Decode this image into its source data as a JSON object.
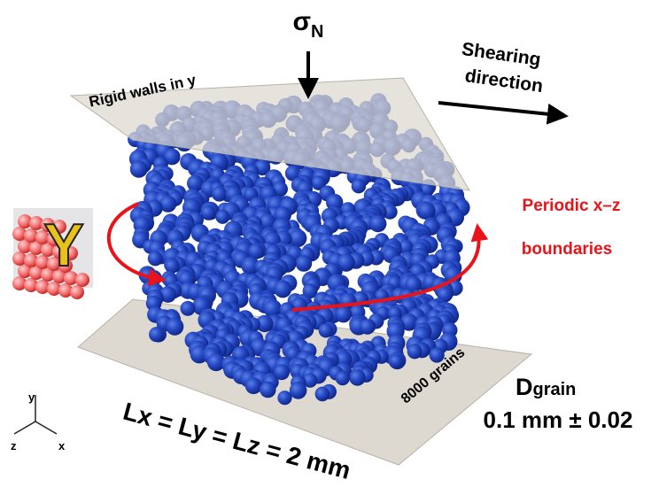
{
  "normal_stress": {
    "symbol": "σ",
    "subscript": "N"
  },
  "shear": {
    "line1": "Shearing",
    "line2": "direction"
  },
  "walls": "Rigid walls in y",
  "periodic": {
    "line1": "Periodic x–z",
    "line2": "boundaries"
  },
  "grain_count": "8000 grains",
  "diameter": {
    "symbol": "D",
    "subscript": "grain",
    "value": "0.1 mm ± 0.02"
  },
  "box_size": "Lx = Ly = Lz = 2 mm",
  "axes": {
    "y": "y",
    "z": "z",
    "x": "x"
  },
  "logo": "Y"
}
